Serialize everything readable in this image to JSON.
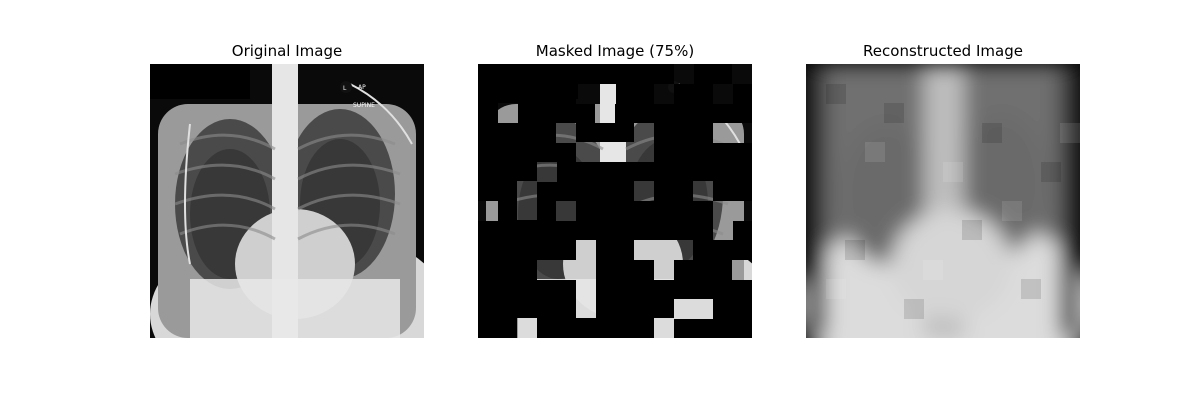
{
  "panels": [
    {
      "title": "Original Image",
      "type": "original"
    },
    {
      "title": "Masked Image (75%)",
      "type": "masked"
    },
    {
      "title": "Reconstructed Image",
      "type": "reconstructed"
    }
  ],
  "xray_labels": {
    "view": "AP",
    "position": "SUPINE",
    "marker": "L"
  },
  "mask_ratio": 0.75,
  "patch_grid": 14
}
